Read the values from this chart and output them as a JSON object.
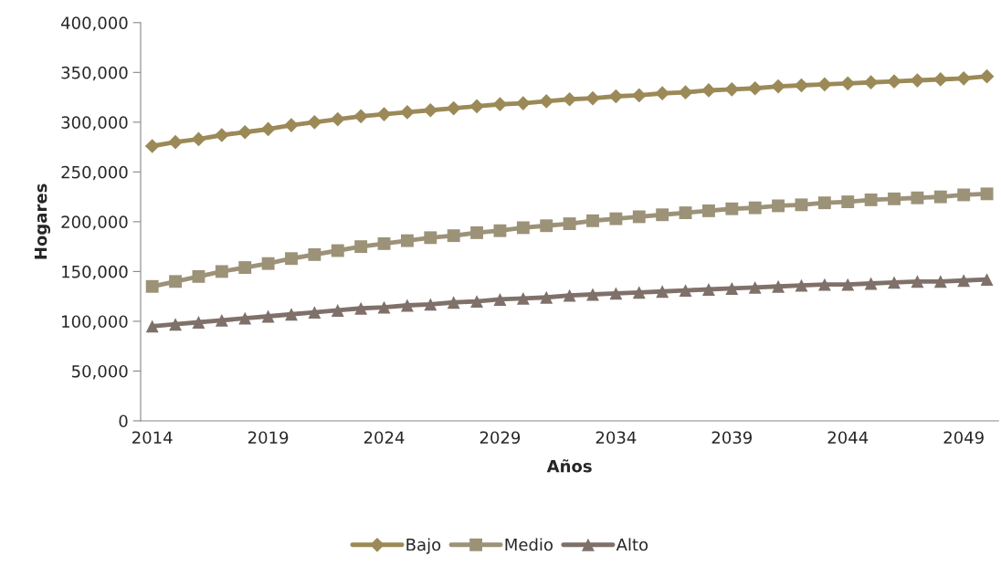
{
  "chart_data": {
    "type": "line",
    "xlabel": "Años",
    "ylabel": "Hogares",
    "categories": [
      "2014",
      null,
      null,
      null,
      null,
      "2019",
      null,
      null,
      null,
      null,
      "2024",
      null,
      null,
      null,
      null,
      "2029",
      null,
      null,
      null,
      null,
      "2034",
      null,
      null,
      null,
      null,
      "2039",
      null,
      null,
      null,
      null,
      "2044",
      null,
      null,
      null,
      null,
      "2049",
      null
    ],
    "series": [
      {
        "name": "Bajo",
        "color": "#9b8a57",
        "marker": "diamond",
        "values": [
          276000,
          280000,
          283000,
          287000,
          290000,
          293000,
          297000,
          300000,
          303000,
          306000,
          308000,
          310000,
          312000,
          314000,
          316000,
          318000,
          319000,
          321000,
          323000,
          324000,
          326000,
          327000,
          329000,
          330000,
          332000,
          333000,
          334000,
          336000,
          337000,
          338000,
          339000,
          340000,
          341000,
          342000,
          343000,
          344000,
          346000
        ]
      },
      {
        "name": "Medio",
        "color": "#9c9278",
        "marker": "square",
        "values": [
          135000,
          140000,
          145000,
          150000,
          154000,
          158000,
          163000,
          167000,
          171000,
          175000,
          178000,
          181000,
          184000,
          186000,
          189000,
          191000,
          194000,
          196000,
          198000,
          201000,
          203000,
          205000,
          207000,
          209000,
          211000,
          213000,
          214000,
          216000,
          217000,
          219000,
          220000,
          222000,
          223000,
          224000,
          225000,
          227000,
          228000
        ]
      },
      {
        "name": "Alto",
        "color": "#7f716a",
        "marker": "triangle",
        "values": [
          95000,
          97000,
          99000,
          101000,
          103000,
          105000,
          107000,
          109000,
          111000,
          113000,
          114000,
          116000,
          117000,
          119000,
          120000,
          122000,
          123000,
          124000,
          126000,
          127000,
          128000,
          129000,
          130000,
          131000,
          132000,
          133000,
          134000,
          135000,
          136000,
          137000,
          137000,
          138000,
          139000,
          140000,
          140000,
          141000,
          142000
        ]
      }
    ],
    "ylim": [
      0,
      400000
    ],
    "yticks": [
      0,
      {
        "value": 50000,
        "label": "50,000"
      },
      {
        "value": 100000,
        "label": "100,000"
      },
      {
        "value": 150000,
        "label": "150,000"
      },
      {
        "value": 200000,
        "label": "200,000"
      },
      {
        "value": 250000,
        "label": "250,000"
      },
      {
        "value": 300000,
        "label": "300,000"
      },
      {
        "value": 350000,
        "label": "350,000"
      },
      {
        "value": 400000,
        "label": "400,000"
      }
    ],
    "grid": false,
    "legend": "bottom",
    "line_style": "solid"
  }
}
